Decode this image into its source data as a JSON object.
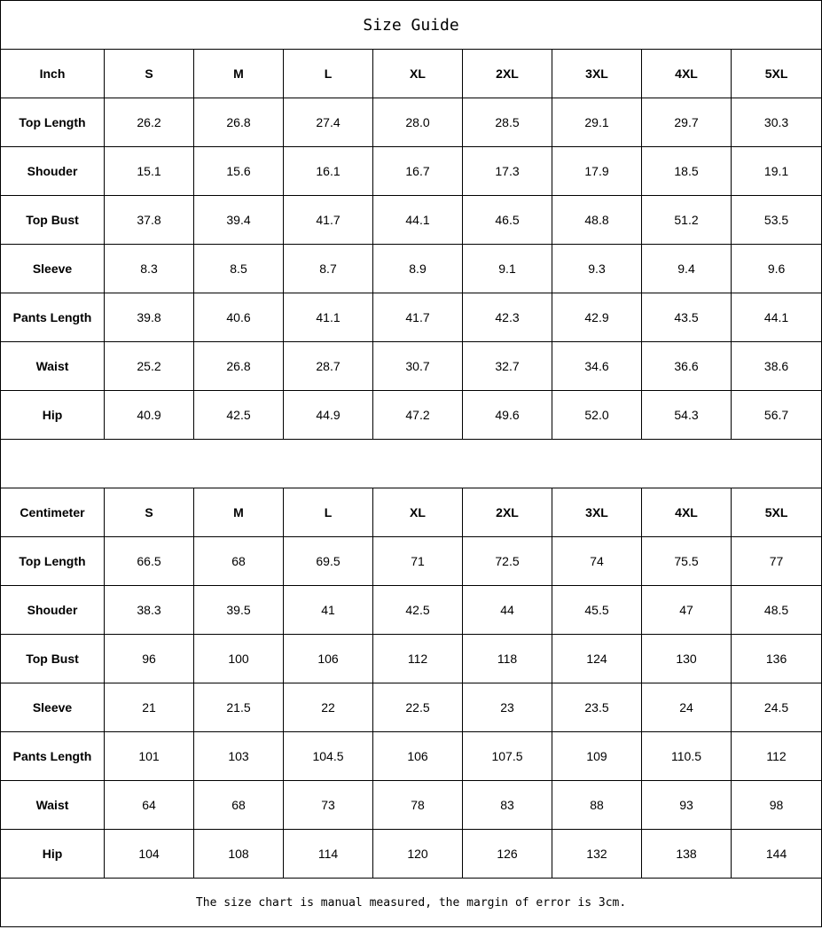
{
  "title": "Size Guide",
  "sizes": [
    "S",
    "M",
    "L",
    "XL",
    "2XL",
    "3XL",
    "4XL",
    "5XL"
  ],
  "tables": [
    {
      "unit": "Inch",
      "rows": [
        {
          "label": "Top Length",
          "values": [
            "26.2",
            "26.8",
            "27.4",
            "28.0",
            "28.5",
            "29.1",
            "29.7",
            "30.3"
          ]
        },
        {
          "label": "Shouder",
          "values": [
            "15.1",
            "15.6",
            "16.1",
            "16.7",
            "17.3",
            "17.9",
            "18.5",
            "19.1"
          ]
        },
        {
          "label": "Top Bust",
          "values": [
            "37.8",
            "39.4",
            "41.7",
            "44.1",
            "46.5",
            "48.8",
            "51.2",
            "53.5"
          ]
        },
        {
          "label": "Sleeve",
          "values": [
            "8.3",
            "8.5",
            "8.7",
            "8.9",
            "9.1",
            "9.3",
            "9.4",
            "9.6"
          ]
        },
        {
          "label": "Pants Length",
          "values": [
            "39.8",
            "40.6",
            "41.1",
            "41.7",
            "42.3",
            "42.9",
            "43.5",
            "44.1"
          ]
        },
        {
          "label": "Waist",
          "values": [
            "25.2",
            "26.8",
            "28.7",
            "30.7",
            "32.7",
            "34.6",
            "36.6",
            "38.6"
          ]
        },
        {
          "label": "Hip",
          "values": [
            "40.9",
            "42.5",
            "44.9",
            "47.2",
            "49.6",
            "52.0",
            "54.3",
            "56.7"
          ]
        }
      ]
    },
    {
      "unit": "Centimeter",
      "rows": [
        {
          "label": "Top Length",
          "values": [
            "66.5",
            "68",
            "69.5",
            "71",
            "72.5",
            "74",
            "75.5",
            "77"
          ]
        },
        {
          "label": "Shouder",
          "values": [
            "38.3",
            "39.5",
            "41",
            "42.5",
            "44",
            "45.5",
            "47",
            "48.5"
          ]
        },
        {
          "label": "Top Bust",
          "values": [
            "96",
            "100",
            "106",
            "112",
            "118",
            "124",
            "130",
            "136"
          ]
        },
        {
          "label": "Sleeve",
          "values": [
            "21",
            "21.5",
            "22",
            "22.5",
            "23",
            "23.5",
            "24",
            "24.5"
          ]
        },
        {
          "label": "Pants Length",
          "values": [
            "101",
            "103",
            "104.5",
            "106",
            "107.5",
            "109",
            "110.5",
            "112"
          ]
        },
        {
          "label": "Waist",
          "values": [
            "64",
            "68",
            "73",
            "78",
            "83",
            "88",
            "93",
            "98"
          ]
        },
        {
          "label": "Hip",
          "values": [
            "104",
            "108",
            "114",
            "120",
            "126",
            "132",
            "138",
            "144"
          ]
        }
      ]
    }
  ],
  "note": "The size chart is manual measured, the margin of error is 3cm."
}
